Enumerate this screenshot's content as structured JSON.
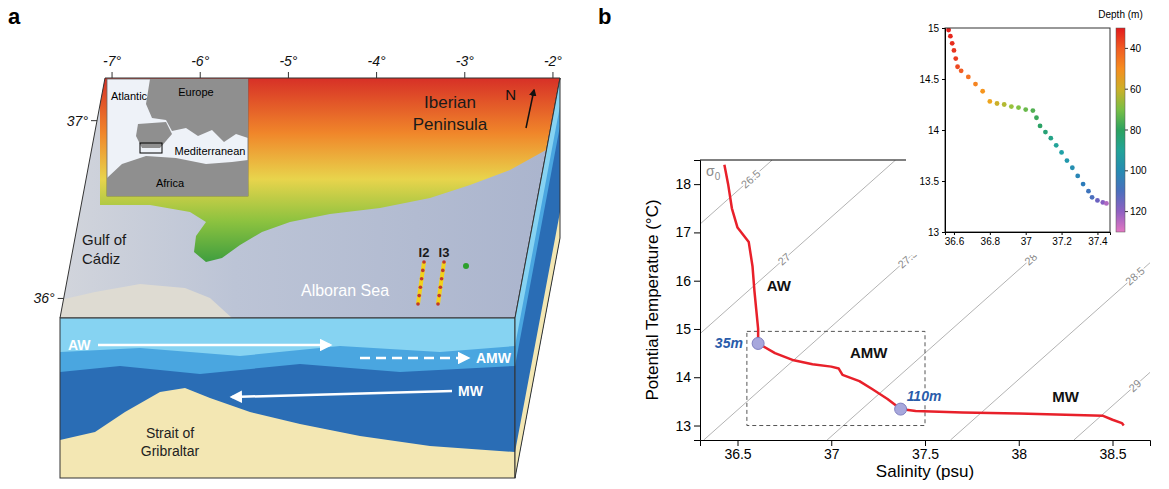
{
  "map_panel": {
    "panel_label": "a",
    "lon_lim": [
      -7.08,
      -1.92
    ],
    "lon_ticks": [
      {
        "value": -7,
        "label": "-7°"
      },
      {
        "value": -6,
        "label": "-6°"
      },
      {
        "value": -5,
        "label": "-5°"
      },
      {
        "value": -4,
        "label": "-4°"
      },
      {
        "value": -3,
        "label": "-3°"
      },
      {
        "value": -2,
        "label": "-2°"
      }
    ],
    "lat_lim": [
      35.89,
      37.24
    ],
    "lat_ticks": [
      {
        "value": 37,
        "label": "37°"
      },
      {
        "value": 36,
        "label": "36°"
      }
    ],
    "locator_labels": [
      "Atlantic",
      "Europe",
      "Mediterranean",
      "Africa"
    ],
    "region_labels": [
      "Iberian Peninsula",
      "Gulf of Cádiz",
      "Alboran Sea"
    ],
    "north": "N",
    "transects": [
      "I2",
      "I3"
    ],
    "water_masses": [
      "AW",
      "AMW",
      "MW"
    ],
    "strait": "Strait of Gribraltar"
  },
  "chart_data": [
    {
      "type": "line",
      "panel_label": "b",
      "x_label": "Salinity (psu)",
      "y_label": "Potential Temperature (°C)",
      "xlim": [
        36.3,
        38.7
      ],
      "ylim": [
        12.7,
        18.5
      ],
      "xticks": [
        36.5,
        37,
        37.5,
        38,
        38.5
      ],
      "yticks": [
        13,
        14,
        15,
        16,
        17,
        18
      ],
      "series": [
        {
          "color": "#e8202a",
          "x": [
            36.43,
            36.45,
            36.47,
            36.5,
            36.56,
            36.58,
            36.59,
            36.6,
            36.61,
            36.61,
            36.7,
            36.8,
            36.9,
            37.0,
            37.04,
            37.06,
            37.15,
            37.22,
            37.3,
            37.37,
            37.45,
            37.7,
            38.0,
            38.3,
            38.45,
            38.5,
            38.55,
            38.56
          ],
          "values": [
            18.4,
            18.0,
            17.5,
            17.1,
            16.8,
            16.3,
            15.8,
            15.4,
            15.0,
            14.7,
            14.5,
            14.35,
            14.27,
            14.22,
            14.18,
            14.05,
            13.92,
            13.75,
            13.55,
            13.34,
            13.3,
            13.27,
            13.25,
            13.22,
            13.2,
            13.12,
            13.05,
            13.0
          ]
        }
      ],
      "isopycnals": {
        "label": "σ0",
        "levels": [
          26.5,
          27,
          27.5,
          28,
          28.5,
          29
        ],
        "lines": [
          {
            "x": [
              35.004,
              36.685
            ],
            "values": [
              12.7,
              18.5
            ]
          },
          {
            "x": [
              35.662,
              37.343
            ],
            "values": [
              12.7,
              18.5
            ]
          },
          {
            "x": [
              36.32,
              38.001
            ],
            "values": [
              12.7,
              18.5
            ]
          },
          {
            "x": [
              36.978,
              38.659
            ],
            "values": [
              12.7,
              18.5
            ]
          },
          {
            "x": [
              37.636,
              39.317
            ],
            "values": [
              12.7,
              18.5
            ]
          },
          {
            "x": [
              38.294,
              39.975
            ],
            "values": [
              12.7,
              18.5
            ]
          }
        ]
      },
      "markers": [
        {
          "label": "35m",
          "x": 36.61,
          "y": 14.7
        },
        {
          "label": "110m",
          "x": 37.37,
          "y": 13.34
        }
      ],
      "annotations": [
        {
          "text": "AW",
          "x": 36.72,
          "y": 15.9
        },
        {
          "text": "AMW",
          "x": 37.2,
          "y": 14.5
        },
        {
          "text": "MW",
          "x": 38.25,
          "y": 13.6
        }
      ],
      "zoom_box": {
        "x": [
          36.55,
          37.5
        ],
        "y": [
          13.0,
          14.95
        ]
      }
    },
    {
      "type": "scatter",
      "xlim": [
        36.55,
        37.47
      ],
      "ylim": [
        13,
        15
      ],
      "xticks": [
        36.6,
        36.8,
        37,
        37.2,
        37.4
      ],
      "yticks": [
        13,
        13.5,
        14,
        14.5,
        15
      ],
      "x": [
        36.57,
        36.58,
        36.59,
        36.6,
        36.61,
        36.62,
        36.64,
        36.68,
        36.72,
        36.76,
        36.8,
        36.84,
        36.88,
        36.92,
        36.96,
        37.0,
        37.04,
        37.06,
        37.08,
        37.11,
        37.14,
        37.17,
        37.2,
        37.23,
        37.26,
        37.29,
        37.32,
        37.35,
        37.37,
        37.4,
        37.43,
        37.45
      ],
      "values": [
        14.98,
        14.92,
        14.85,
        14.78,
        14.7,
        14.62,
        14.58,
        14.52,
        14.45,
        14.38,
        14.28,
        14.26,
        14.25,
        14.23,
        14.22,
        14.2,
        14.19,
        14.12,
        14.04,
        13.98,
        13.92,
        13.85,
        13.78,
        13.7,
        13.63,
        13.55,
        13.47,
        13.4,
        13.34,
        13.31,
        13.29,
        13.28
      ],
      "depth": [
        31,
        32,
        33,
        34,
        35,
        37,
        40,
        44,
        48,
        52,
        56,
        60,
        63,
        66,
        69,
        72,
        75,
        78,
        81,
        84,
        87,
        90,
        93,
        96,
        99,
        102,
        105,
        108,
        110,
        115,
        119,
        124
      ],
      "colorbar": {
        "label": "Depth (m)",
        "range": [
          30,
          130
        ],
        "ticks": [
          40,
          60,
          80,
          100,
          120
        ]
      }
    }
  ]
}
